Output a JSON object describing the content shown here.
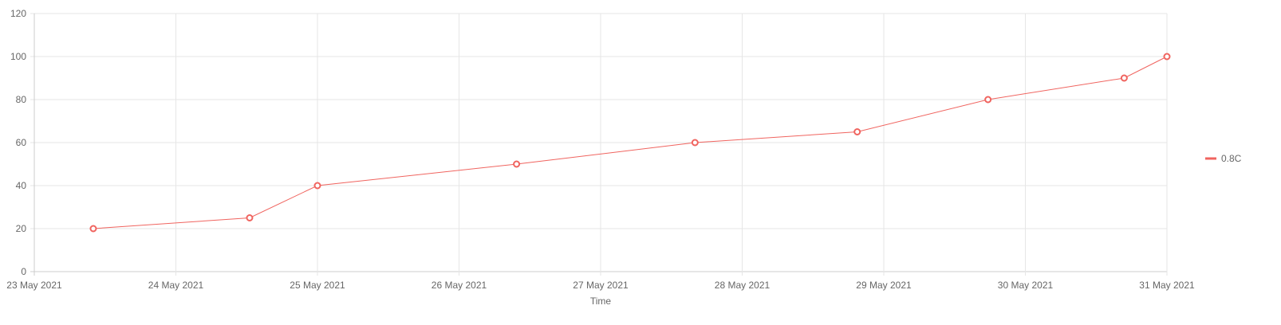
{
  "chart_data": {
    "type": "line",
    "title": "",
    "xlabel": "Time",
    "ylabel": "",
    "x_axis_type": "date",
    "xlim": [
      "2021-05-23",
      "2021-05-31"
    ],
    "ylim": [
      0,
      120
    ],
    "x_ticks": [
      {
        "date": "2021-05-23",
        "label": "23 May 2021"
      },
      {
        "date": "2021-05-24",
        "label": "24 May 2021"
      },
      {
        "date": "2021-05-25",
        "label": "25 May 2021"
      },
      {
        "date": "2021-05-26",
        "label": "26 May 2021"
      },
      {
        "date": "2021-05-27",
        "label": "27 May 2021"
      },
      {
        "date": "2021-05-28",
        "label": "28 May 2021"
      },
      {
        "date": "2021-05-29",
        "label": "29 May 2021"
      },
      {
        "date": "2021-05-30",
        "label": "30 May 2021"
      },
      {
        "date": "2021-05-31",
        "label": "31 May 2021"
      }
    ],
    "y_ticks": [
      0,
      20,
      40,
      60,
      80,
      100,
      120
    ],
    "grid": true,
    "legend_position": "right",
    "series": [
      {
        "name": "0.8C",
        "color": "#f0645f",
        "points": [
          {
            "x": "2021-05-23T10:00",
            "y": 20
          },
          {
            "x": "2021-05-24T12:30",
            "y": 25
          },
          {
            "x": "2021-05-25T00:00",
            "y": 40
          },
          {
            "x": "2021-05-26T09:45",
            "y": 50
          },
          {
            "x": "2021-05-27T16:00",
            "y": 60
          },
          {
            "x": "2021-05-28T19:30",
            "y": 65
          },
          {
            "x": "2021-05-29T17:40",
            "y": 80
          },
          {
            "x": "2021-05-30T16:45",
            "y": 90
          },
          {
            "x": "2021-05-31T00:00",
            "y": 100
          }
        ]
      }
    ]
  }
}
